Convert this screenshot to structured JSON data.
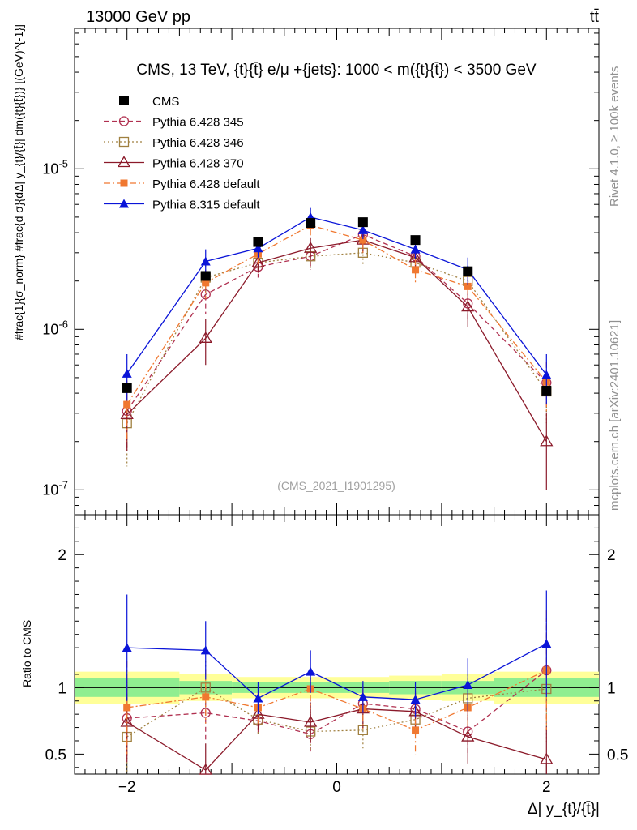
{
  "header": {
    "left": "13000 GeV pp",
    "right": "tt̄",
    "plot_title": "CMS, 13 TeV, {t}{t̄} e/μ +{jets}: 1000 < m({t}{t̄}) < 3500 GeV",
    "side_label_top": "Rivet 4.1.0, ≥ 100k events",
    "side_label_bottom": "mcplots.cern.ch [arXiv:2401.10621]",
    "watermark": "(CMS_2021_I1901295)"
  },
  "colors": {
    "cms": "#000000",
    "p345": "#b03050",
    "p346": "#a08040",
    "p370": "#8b1a2a",
    "pdef": "#f07830",
    "p8": "#0a14d8",
    "band_yellow": "#ffff99",
    "band_green": "#90ee90"
  },
  "chart_data": [
    {
      "type": "line",
      "panel": "main",
      "ylabel": "#frac{1}{σ_norm} #frac{d σ}{dΔ| y_{t}/{t̄}| dm({t}{t̄})} [(GeV)^{-1}]",
      "xlabel": "Δ| y_{t}/{t̄}|",
      "yscale": "log",
      "ylim": [
        7e-08,
        7.5e-05
      ],
      "xlim": [
        -2.5,
        2.5
      ],
      "x": [
        -2.0,
        -1.25,
        -0.75,
        -0.25,
        0.25,
        0.75,
        1.25,
        2.0
      ],
      "ytick_labels": [
        "10^-7",
        "10^-6",
        "10^-5"
      ],
      "xtick_labels": [
        "-2",
        "0",
        "2"
      ],
      "series": [
        {
          "name": "CMS",
          "key": "cms",
          "style": "data",
          "marker": "square-filled",
          "values": [
            4.3e-07,
            2.15e-06,
            3.5e-06,
            4.6e-06,
            4.65e-06,
            3.6e-06,
            2.3e-06,
            4.15e-07
          ],
          "err_lo": [
            0,
            0,
            0,
            0,
            0,
            0,
            0,
            0
          ],
          "err_hi": [
            0,
            0,
            0,
            0,
            0,
            0,
            0,
            0
          ]
        },
        {
          "name": "Pythia 6.428 345",
          "key": "p345",
          "style": "dashed",
          "marker": "circle-open",
          "values": [
            3.1e-07,
            1.65e-06,
            2.45e-06,
            2.85e-06,
            3.9e-06,
            2.85e-06,
            1.45e-06,
            4.65e-07
          ],
          "err_lo": [
            1.3e-07,
            4e-07,
            3.5e-07,
            5e-07,
            6e-07,
            4e-07,
            3e-07,
            1.6e-07
          ],
          "err_hi": [
            1.3e-07,
            4e-07,
            3.5e-07,
            5e-07,
            6e-07,
            4e-07,
            3e-07,
            1.6e-07
          ]
        },
        {
          "name": "Pythia 6.428 346",
          "key": "p346",
          "style": "dotted",
          "marker": "square-open",
          "values": [
            2.6e-07,
            2.1e-06,
            2.6e-06,
            2.85e-06,
            3e-06,
            2.6e-06,
            2e-06,
            4.1e-07
          ],
          "err_lo": [
            1.2e-07,
            4e-07,
            3.5e-07,
            4.5e-07,
            5e-07,
            4e-07,
            3e-07,
            1.5e-07
          ],
          "err_hi": [
            1.2e-07,
            4e-07,
            3.5e-07,
            4.5e-07,
            5e-07,
            4e-07,
            3e-07,
            1.5e-07
          ]
        },
        {
          "name": "Pythia 6.428 370",
          "key": "p370",
          "style": "solid",
          "marker": "triangle-open",
          "values": [
            2.95e-07,
            8.8e-07,
            2.6e-06,
            3.2e-06,
            3.6e-06,
            2.8e-06,
            1.38e-06,
            2e-07
          ],
          "err_lo": [
            1.2e-07,
            2.8e-07,
            3.5e-07,
            5e-07,
            6e-07,
            4e-07,
            3.5e-07,
            1e-07
          ],
          "err_hi": [
            1.2e-07,
            2.8e-07,
            3.5e-07,
            5e-07,
            6e-07,
            4e-07,
            3.5e-07,
            1e-07
          ]
        },
        {
          "name": "Pythia 6.428 default",
          "key": "pdef",
          "style": "dashdot",
          "marker": "square-filled-small",
          "values": [
            3.4e-07,
            1.95e-06,
            2.95e-06,
            4.45e-06,
            3.6e-06,
            2.35e-06,
            1.85e-06,
            4.7e-07
          ],
          "err_lo": [
            1.4e-07,
            4e-07,
            4e-07,
            6e-07,
            6e-07,
            4e-07,
            3.5e-07,
            1.6e-07
          ],
          "err_hi": [
            1.4e-07,
            4e-07,
            4e-07,
            6e-07,
            6e-07,
            4e-07,
            3.5e-07,
            1.6e-07
          ]
        },
        {
          "name": "Pythia 8.315 default",
          "key": "p8",
          "style": "solid",
          "marker": "triangle-filled",
          "values": [
            5.3e-07,
            2.65e-06,
            3.2e-06,
            5e-06,
            4.15e-06,
            3.15e-06,
            2.35e-06,
            5.2e-07
          ],
          "err_lo": [
            1.7e-07,
            5e-07,
            4e-07,
            7e-07,
            5e-07,
            4e-07,
            4.5e-07,
            1.8e-07
          ],
          "err_hi": [
            1.7e-07,
            5e-07,
            4e-07,
            7e-07,
            5e-07,
            4e-07,
            4.5e-07,
            1.8e-07
          ]
        }
      ]
    },
    {
      "type": "line",
      "panel": "ratio",
      "ylabel": "Ratio to CMS",
      "ylim": [
        0.35,
        2.3
      ],
      "xlim": [
        -2.5,
        2.5
      ],
      "ytick_labels": [
        "0.5",
        "1",
        "2"
      ],
      "band_edges": [
        -2.5,
        -1.5,
        -1.0,
        -0.5,
        0.0,
        0.5,
        1.0,
        1.5,
        2.5
      ],
      "band_yellow": [
        [
          0.88,
          1.12
        ],
        [
          0.9,
          1.1
        ],
        [
          0.92,
          1.08
        ],
        [
          0.92,
          1.08
        ],
        [
          0.92,
          1.08
        ],
        [
          0.91,
          1.09
        ],
        [
          0.9,
          1.1
        ],
        [
          0.88,
          1.12
        ]
      ],
      "band_green": [
        [
          0.93,
          1.07
        ],
        [
          0.95,
          1.05
        ],
        [
          0.96,
          1.04
        ],
        [
          0.96,
          1.04
        ],
        [
          0.96,
          1.04
        ],
        [
          0.95,
          1.05
        ],
        [
          0.95,
          1.05
        ],
        [
          0.93,
          1.07
        ]
      ],
      "series": [
        {
          "key": "p345",
          "values": [
            0.77,
            0.81,
            0.75,
            0.65,
            0.88,
            0.84,
            0.67,
            1.13
          ],
          "err": [
            0.3,
            0.2,
            0.12,
            0.15,
            0.15,
            0.14,
            0.18,
            0.4
          ]
        },
        {
          "key": "p346",
          "values": [
            0.63,
            1.0,
            0.76,
            0.67,
            0.68,
            0.76,
            0.92,
            0.99
          ],
          "err": [
            0.3,
            0.2,
            0.12,
            0.15,
            0.15,
            0.14,
            0.18,
            0.4
          ]
        },
        {
          "key": "p370",
          "values": [
            0.74,
            0.38,
            0.8,
            0.74,
            0.84,
            0.82,
            0.63,
            0.46
          ],
          "err": [
            0.3,
            0.2,
            0.12,
            0.15,
            0.15,
            0.14,
            0.2,
            0.25
          ]
        },
        {
          "key": "pdef",
          "values": [
            0.85,
            0.93,
            0.85,
            0.99,
            0.84,
            0.68,
            0.85,
            1.13
          ],
          "err": [
            0.35,
            0.2,
            0.12,
            0.15,
            0.15,
            0.18,
            0.2,
            0.45
          ]
        },
        {
          "key": "p8",
          "values": [
            1.3,
            1.28,
            0.92,
            1.12,
            0.93,
            0.91,
            1.02,
            1.33
          ],
          "err": [
            0.4,
            0.22,
            0.12,
            0.16,
            0.12,
            0.13,
            0.2,
            0.4
          ]
        }
      ]
    }
  ]
}
